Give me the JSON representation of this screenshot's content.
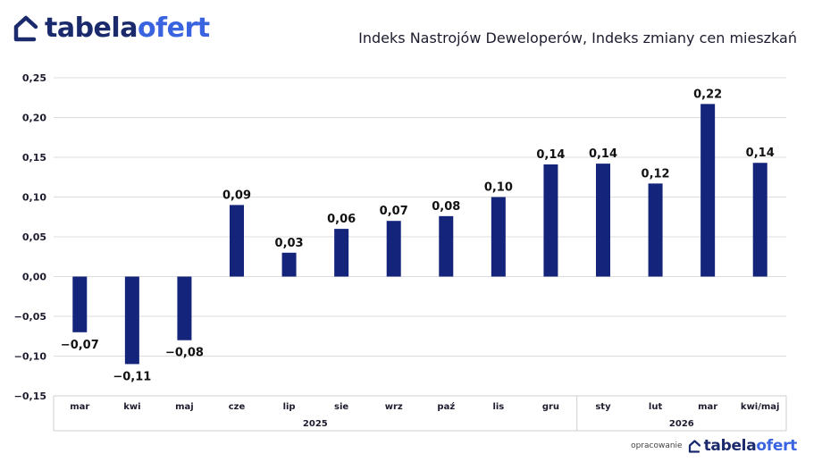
{
  "brand": {
    "name_main": "tabela",
    "name_accent": "ofert",
    "color": "#1a2a6c",
    "accent_color": "#3a63e0",
    "icon": "house-icon"
  },
  "footer": {
    "prefix": "opracowanie",
    "name_main": "tabela",
    "name_accent": "ofert"
  },
  "chart_data": {
    "type": "bar",
    "title": "Indeks Nastrojów Deweloperów, Indeks zmiany cen mieszkań",
    "xlabel": "",
    "ylabel": "",
    "categories": [
      "mar",
      "kwi",
      "maj",
      "cze",
      "lip",
      "sie",
      "wrz",
      "paź",
      "lis",
      "gru",
      "sty",
      "lut",
      "mar",
      "kwi/maj"
    ],
    "year_groups": [
      {
        "label": "2025",
        "start": 0,
        "end": 9
      },
      {
        "label": "2026",
        "start": 10,
        "end": 13
      }
    ],
    "values": [
      -0.07,
      -0.11,
      -0.08,
      0.09,
      0.03,
      0.06,
      0.07,
      0.076,
      0.1,
      0.141,
      0.142,
      0.117,
      0.217,
      0.143
    ],
    "data_labels": [
      "−0,07",
      "−0,11",
      "−0,08",
      "0,09",
      "0,03",
      "0,06",
      "0,07",
      "0,08",
      "0,10",
      "0,14",
      "0,14",
      "0,12",
      "0,22",
      "0,14"
    ],
    "yticks": [
      0.25,
      0.2,
      0.15,
      0.1,
      0.05,
      0.0,
      -0.05,
      -0.1,
      -0.15
    ],
    "ytick_labels": [
      "0,25",
      "0,20",
      "0,15",
      "0,10",
      "0,05",
      "0,00",
      "−0,05",
      "−0,10",
      "−0,15"
    ],
    "ylim": [
      -0.15,
      0.25
    ],
    "grid": true,
    "bar_color": "#14247a"
  }
}
